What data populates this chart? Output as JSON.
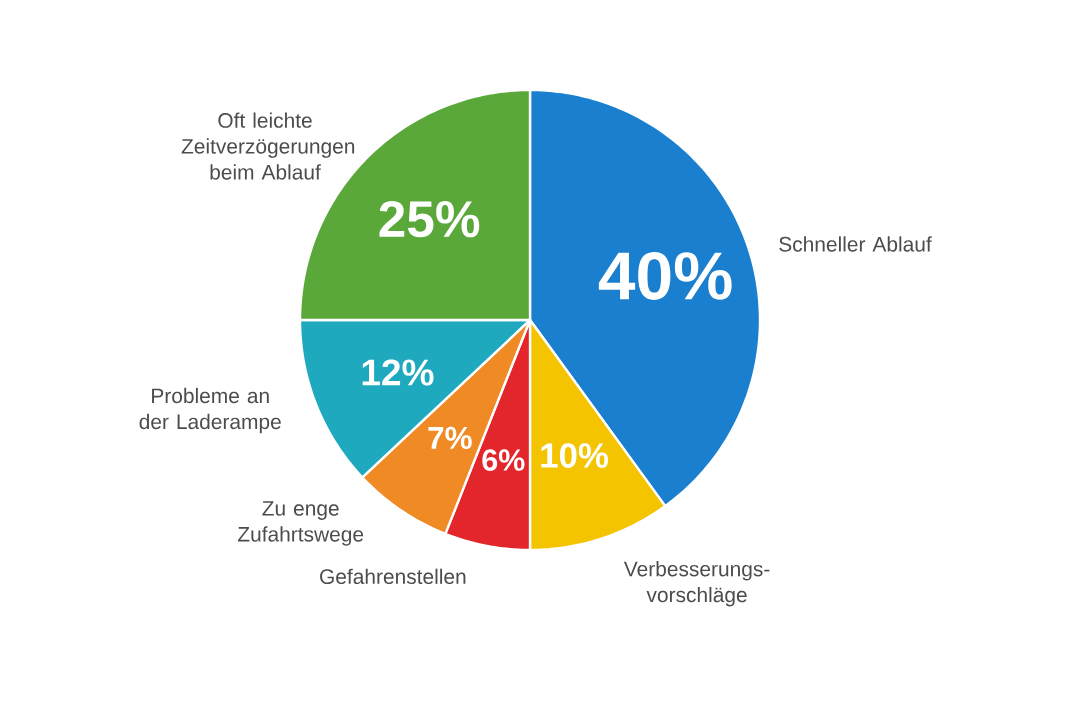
{
  "chart_data": {
    "type": "pie",
    "categories": [
      "Schneller Ablauf",
      "Verbesserungs-vorschläge",
      "Gefahrenstellen",
      "Zu enge Zufahrtswege",
      "Probleme an der Laderampe",
      "Oft leichte Zeitverzögerungen beim Ablauf"
    ],
    "values": [
      40,
      10,
      6,
      7,
      12,
      25
    ],
    "colors": [
      "#1a7fcf",
      "#f5c400",
      "#e2262b",
      "#f08a24",
      "#1fa9bf",
      "#5aa83a"
    ],
    "value_labels": [
      "40%",
      "10%",
      "6%",
      "7%",
      "12%",
      "25%"
    ]
  }
}
